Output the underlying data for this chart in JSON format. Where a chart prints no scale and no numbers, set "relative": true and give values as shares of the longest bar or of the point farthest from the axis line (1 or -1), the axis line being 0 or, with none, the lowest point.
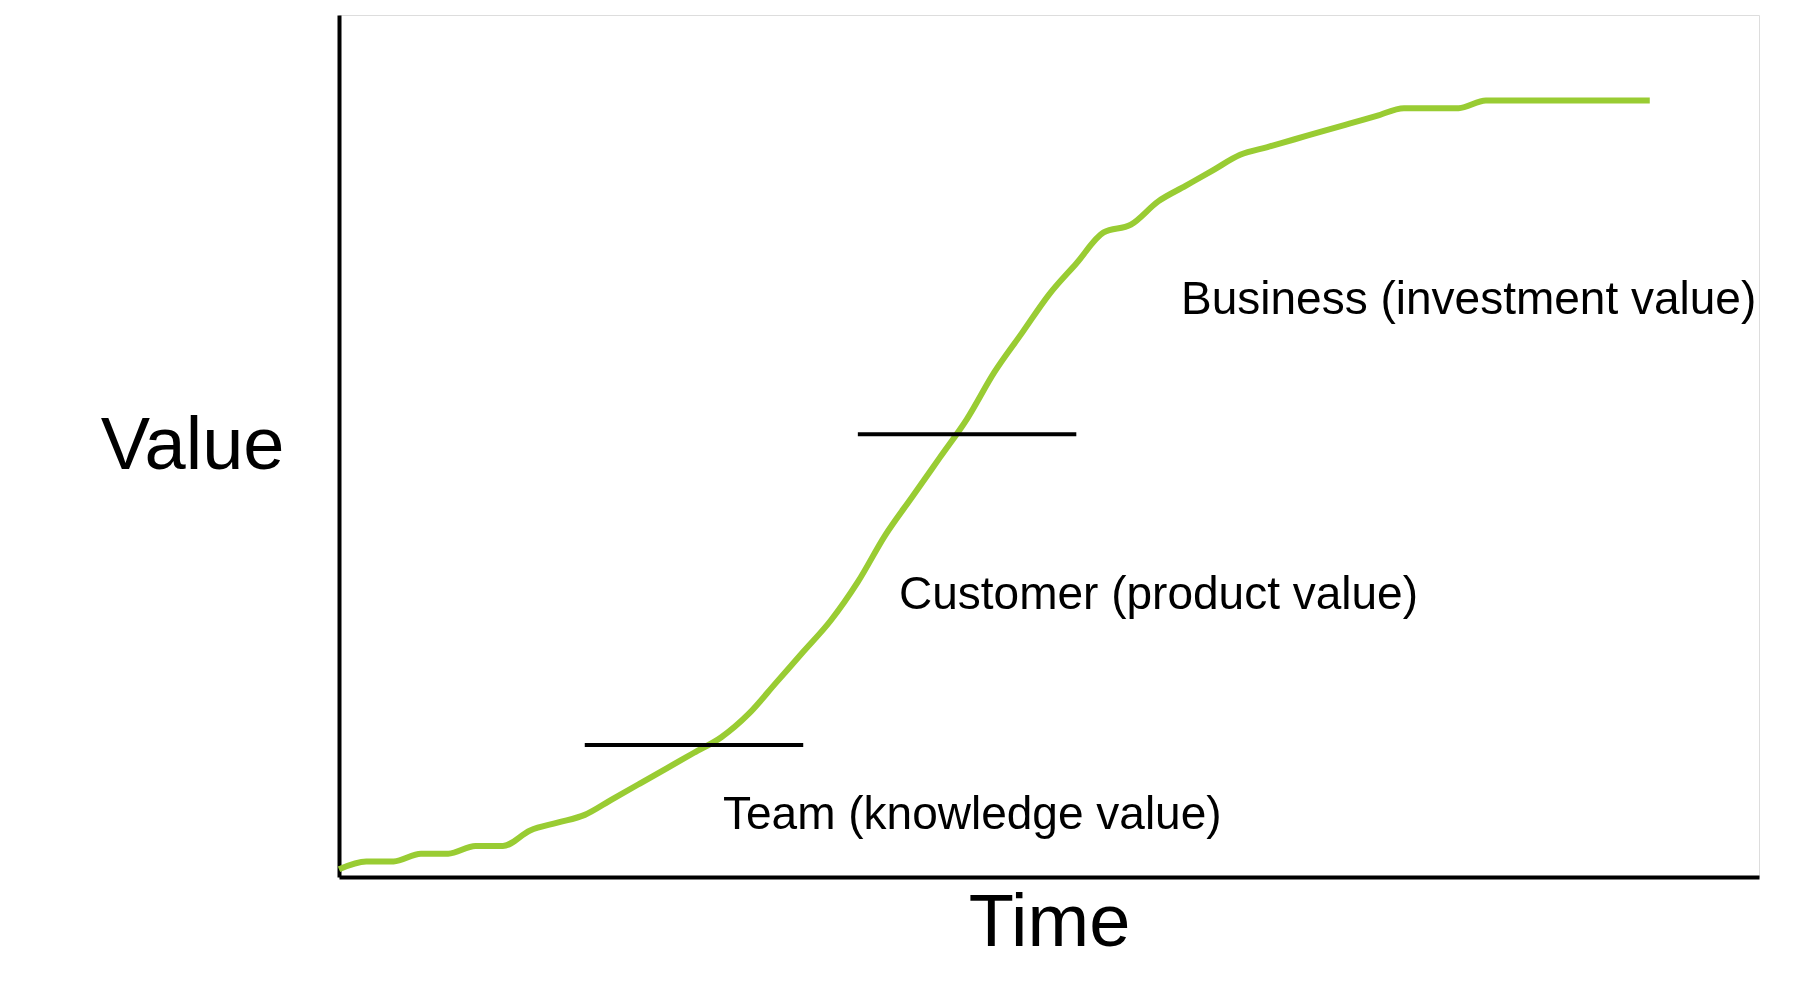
{
  "chart_data": {
    "type": "line",
    "relative": true,
    "xlabel": "Time",
    "ylabel": "Value",
    "categories": [
      null,
      null,
      null,
      null,
      null,
      null,
      null,
      null,
      null,
      null,
      null,
      null,
      null,
      null,
      null,
      null,
      null,
      null,
      null,
      null,
      null,
      null,
      null,
      null,
      null,
      null,
      null,
      null,
      null,
      null,
      null,
      null,
      null,
      null,
      null,
      null,
      null,
      null,
      null,
      null,
      null,
      null,
      null,
      null,
      null,
      null,
      null,
      null,
      null,
      null,
      null,
      null,
      null
    ],
    "series": [
      {
        "color": "#99cc33",
        "values": [
          0.01,
          0.02,
          0.02,
          0.03,
          0.03,
          0.04,
          0.04,
          0.06,
          0.07,
          0.08,
          0.1,
          0.12,
          0.14,
          0.16,
          0.18,
          0.21,
          0.25,
          0.29,
          0.33,
          0.38,
          0.44,
          0.49,
          0.54,
          0.59,
          0.65,
          0.7,
          0.75,
          0.79,
          0.83,
          0.84,
          0.87,
          0.89,
          0.91,
          0.93,
          0.94,
          0.95,
          0.96,
          0.97,
          0.98,
          0.99,
          0.99,
          0.99,
          1.0,
          1.0,
          1.0,
          1.0,
          1.0,
          1.0,
          1.0,
          null,
          null,
          null,
          null
        ]
      },
      {
        "color": "#000000",
        "values": [
          null,
          null,
          null,
          null,
          null,
          null,
          null,
          null,
          null,
          0.17,
          0.17,
          0.17,
          0.17,
          0.17,
          0.17,
          0.17,
          0.17,
          0.17,
          null,
          null,
          null,
          null,
          null,
          null,
          null,
          null,
          null,
          null,
          null,
          null,
          null,
          null,
          null,
          null,
          null,
          null,
          null,
          null,
          null,
          null,
          null,
          null,
          null,
          null,
          null,
          null,
          null,
          null,
          null,
          null,
          null,
          null,
          null
        ]
      },
      {
        "color": "#000000",
        "values": [
          null,
          null,
          null,
          null,
          null,
          null,
          null,
          null,
          null,
          null,
          null,
          null,
          null,
          null,
          null,
          null,
          null,
          null,
          null,
          0.57,
          0.57,
          0.57,
          0.57,
          0.57,
          0.57,
          0.57,
          0.57,
          0.57,
          null,
          null,
          null,
          null,
          null,
          null,
          null,
          null,
          null,
          null,
          null,
          null,
          null,
          null,
          null,
          null,
          null,
          null,
          null,
          null,
          null,
          null,
          null,
          null,
          null
        ]
      }
    ],
    "annotations": [
      "Team (knowledge value)",
      "Customer (product value)",
      "Business (investment value)"
    ],
    "grid": false,
    "tick_labels": false,
    "line_style": "solid",
    "marker": "none"
  }
}
